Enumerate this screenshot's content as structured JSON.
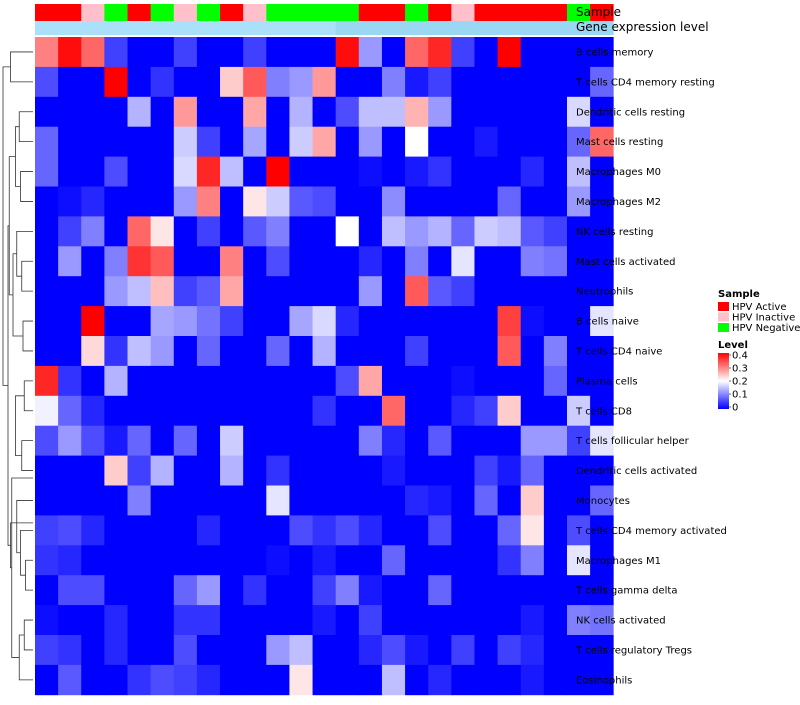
{
  "chart_data": {
    "type": "heatmap",
    "title": "",
    "annotation_labels": {
      "sample": "Sample",
      "gene": "Gene expression level"
    },
    "rows": [
      "B cells memory",
      "T cells CD4 memory resting",
      "Dendritic cells resting",
      "Mast cells resting",
      "Macrophages M0",
      "Macrophages M2",
      "NK cells resting",
      "Mast cells activated",
      "Neutrophils",
      "B cells naive",
      "T cells CD4 naive",
      "Plasma cells",
      "T cells CD8",
      "T cells follicular helper",
      "Dendritic cells activated",
      "Monocytes",
      "T cells CD4 memory activated",
      "Macrophages M1",
      "T cells gamma delta",
      "NK cells activated",
      "T cells regulatory  Tregs",
      "Eosinophils"
    ],
    "sample_groups": [
      "HPV Active",
      "HPV Active",
      "HPV Inactive",
      "HPV Negative",
      "HPV Active",
      "HPV Negative",
      "HPV Inactive",
      "HPV Negative",
      "HPV Active",
      "HPV Inactive",
      "HPV Negative",
      "HPV Negative",
      "HPV Negative",
      "HPV Negative",
      "HPV Active",
      "HPV Active",
      "HPV Negative",
      "HPV Active",
      "HPV Inactive",
      "HPV Active",
      "HPV Active",
      "HPV Active",
      "HPV Active",
      "HPV Negative",
      "HPV Active"
    ],
    "gene_expression_level": [
      0.2,
      0.2,
      0.2,
      0.2,
      0.2,
      0.2,
      0.2,
      0.2,
      0.2,
      0.2,
      0.2,
      0.2,
      0.2,
      0.6,
      0.6,
      0.6,
      0.6,
      0.6,
      0.6,
      0.6,
      0.6,
      0.6,
      0.6,
      0.6,
      0.6
    ],
    "values": [
      [
        0.3,
        0.39,
        0.32,
        0.05,
        0.0,
        0.0,
        0.05,
        0.0,
        0.0,
        0.05,
        0.0,
        0.0,
        0.0,
        0.39,
        0.12,
        0.0,
        0.32,
        0.37,
        0.05,
        0.0,
        0.4,
        0.0,
        0.0,
        0.0,
        0.0
      ],
      [
        0.06,
        0.0,
        0.0,
        0.4,
        0.0,
        0.04,
        0.0,
        0.0,
        0.24,
        0.33,
        0.1,
        0.12,
        0.28,
        0.0,
        0.0,
        0.1,
        0.02,
        0.05,
        0.0,
        0.0,
        0.0,
        0.0,
        0.0,
        0.0,
        0.08
      ],
      [
        0.0,
        0.0,
        0.0,
        0.0,
        0.14,
        0.0,
        0.28,
        0.0,
        0.0,
        0.27,
        0.0,
        0.14,
        0.0,
        0.06,
        0.15,
        0.15,
        0.26,
        0.12,
        0.0,
        0.0,
        0.0,
        0.0,
        0.0,
        0.17,
        0.0
      ],
      [
        0.08,
        0.0,
        0.0,
        0.0,
        0.0,
        0.0,
        0.16,
        0.05,
        0.0,
        0.13,
        0.0,
        0.16,
        0.27,
        0.0,
        0.12,
        0.0,
        0.2,
        0.0,
        0.0,
        0.02,
        0.0,
        0.0,
        0.0,
        0.08,
        0.32
      ],
      [
        0.08,
        0.0,
        0.0,
        0.06,
        0.0,
        0.0,
        0.17,
        0.37,
        0.15,
        0.0,
        0.4,
        0.0,
        0.0,
        0.0,
        0.01,
        0.0,
        0.02,
        0.04,
        0.0,
        0.0,
        0.0,
        0.03,
        0.0,
        0.15,
        0.0
      ],
      [
        0.0,
        0.01,
        0.03,
        0.0,
        0.0,
        0.0,
        0.12,
        0.3,
        0.0,
        0.22,
        0.16,
        0.07,
        0.06,
        0.0,
        0.0,
        0.11,
        0.0,
        0.0,
        0.0,
        0.0,
        0.08,
        0.0,
        0.0,
        0.12,
        0.0
      ],
      [
        0.0,
        0.05,
        0.1,
        0.0,
        0.32,
        0.22,
        0.0,
        0.05,
        0.0,
        0.07,
        0.1,
        0.0,
        0.0,
        0.2,
        0.0,
        0.15,
        0.12,
        0.14,
        0.08,
        0.16,
        0.15,
        0.07,
        0.05,
        0.0,
        0.0
      ],
      [
        0.0,
        0.12,
        0.0,
        0.1,
        0.36,
        0.33,
        0.0,
        0.0,
        0.3,
        0.0,
        0.06,
        0.0,
        0.0,
        0.0,
        0.03,
        0.0,
        0.1,
        0.0,
        0.18,
        0.0,
        0.0,
        0.1,
        0.09,
        0.0,
        0.0
      ],
      [
        0.0,
        0.0,
        0.0,
        0.12,
        0.15,
        0.25,
        0.05,
        0.07,
        0.27,
        0.0,
        0.0,
        0.0,
        0.0,
        0.0,
        0.12,
        0.0,
        0.33,
        0.07,
        0.05,
        0.0,
        0.0,
        0.0,
        0.0,
        0.0,
        0.0
      ],
      [
        0.0,
        0.0,
        0.4,
        0.0,
        0.0,
        0.13,
        0.12,
        0.09,
        0.05,
        0.0,
        0.0,
        0.13,
        0.17,
        0.03,
        0.0,
        0.0,
        0.0,
        0.0,
        0.0,
        0.0,
        0.35,
        0.01,
        0.0,
        0.0,
        0.18
      ],
      [
        0.0,
        0.0,
        0.23,
        0.04,
        0.15,
        0.12,
        0.0,
        0.08,
        0.0,
        0.0,
        0.08,
        0.0,
        0.14,
        0.0,
        0.0,
        0.0,
        0.05,
        0.0,
        0.0,
        0.0,
        0.33,
        0.0,
        0.1,
        0.0,
        0.0
      ],
      [
        0.37,
        0.04,
        0.0,
        0.14,
        0.0,
        0.0,
        0.0,
        0.0,
        0.0,
        0.0,
        0.0,
        0.0,
        0.0,
        0.06,
        0.27,
        0.0,
        0.0,
        0.0,
        0.01,
        0.0,
        0.0,
        0.0,
        0.08,
        0.0,
        0.0
      ],
      [
        0.19,
        0.08,
        0.03,
        0.0,
        0.0,
        0.0,
        0.0,
        0.0,
        0.0,
        0.0,
        0.0,
        0.0,
        0.04,
        0.0,
        0.0,
        0.32,
        0.0,
        0.0,
        0.03,
        0.05,
        0.24,
        0.0,
        0.0,
        0.16,
        0.0
      ],
      [
        0.06,
        0.12,
        0.06,
        0.02,
        0.08,
        0.0,
        0.08,
        0.0,
        0.16,
        0.0,
        0.0,
        0.0,
        0.0,
        0.0,
        0.1,
        0.03,
        0.0,
        0.07,
        0.0,
        0.0,
        0.0,
        0.12,
        0.12,
        0.05,
        0.18
      ],
      [
        0.0,
        0.0,
        0.0,
        0.24,
        0.05,
        0.14,
        0.0,
        0.0,
        0.14,
        0.0,
        0.04,
        0.0,
        0.0,
        0.0,
        0.0,
        0.02,
        0.0,
        0.0,
        0.0,
        0.05,
        0.02,
        0.08,
        0.0,
        0.0,
        0.0
      ],
      [
        0.0,
        0.0,
        0.0,
        0.0,
        0.1,
        0.0,
        0.0,
        0.0,
        0.0,
        0.0,
        0.18,
        0.0,
        0.0,
        0.0,
        0.0,
        0.0,
        0.03,
        0.02,
        0.0,
        0.08,
        0.0,
        0.24,
        0.0,
        0.0,
        0.08
      ],
      [
        0.05,
        0.06,
        0.03,
        0.0,
        0.0,
        0.0,
        0.0,
        0.03,
        0.0,
        0.0,
        0.0,
        0.06,
        0.04,
        0.06,
        0.03,
        0.0,
        0.0,
        0.06,
        0.0,
        0.0,
        0.08,
        0.22,
        0.0,
        0.06,
        0.0
      ],
      [
        0.04,
        0.03,
        0.0,
        0.0,
        0.0,
        0.0,
        0.0,
        0.0,
        0.0,
        0.0,
        0.01,
        0.0,
        0.02,
        0.0,
        0.0,
        0.08,
        0.0,
        0.0,
        0.0,
        0.0,
        0.04,
        0.1,
        0.0,
        0.18,
        0.0
      ],
      [
        0.0,
        0.06,
        0.06,
        0.0,
        0.0,
        0.0,
        0.08,
        0.12,
        0.0,
        0.04,
        0.0,
        0.0,
        0.05,
        0.1,
        0.02,
        0.0,
        0.0,
        0.08,
        0.0,
        0.0,
        0.0,
        0.0,
        0.0,
        0.0,
        0.0
      ],
      [
        0.01,
        0.0,
        0.0,
        0.03,
        0.0,
        0.0,
        0.04,
        0.04,
        0.0,
        0.0,
        0.0,
        0.0,
        0.02,
        0.0,
        0.05,
        0.0,
        0.0,
        0.0,
        0.0,
        0.0,
        0.0,
        0.02,
        0.0,
        0.1,
        0.09
      ],
      [
        0.05,
        0.04,
        0.0,
        0.03,
        0.0,
        0.0,
        0.06,
        0.0,
        0.0,
        0.0,
        0.12,
        0.15,
        0.0,
        0.0,
        0.03,
        0.06,
        0.02,
        0.0,
        0.05,
        0.0,
        0.05,
        0.03,
        0.0,
        0.0,
        0.0
      ],
      [
        0.0,
        0.07,
        0.0,
        0.0,
        0.04,
        0.06,
        0.05,
        0.03,
        0.0,
        0.0,
        0.0,
        0.22,
        0.0,
        0.0,
        0.0,
        0.15,
        0.0,
        0.03,
        0.0,
        0.0,
        0.0,
        0.02,
        0.0,
        0.0,
        0.0
      ]
    ],
    "row_dendrogram": [
      [
        [
          11,
          12
        ],
        0.35
      ],
      [
        [
          9,
          10
        ],
        0.4
      ],
      [
        [
          7,
          8
        ],
        0.45
      ],
      [
        [
          13,
          14
        ],
        0.45
      ],
      [
        [
          17,
          18
        ],
        0.3
      ],
      [
        [
          16,
          17.5
        ],
        0.5
      ],
      [
        [
          19,
          20
        ],
        0.35
      ],
      [
        [
          19.5,
          21
        ],
        0.55
      ],
      [
        [
          0,
          1
        ],
        0.9
      ],
      [
        [
          2,
          3
        ],
        0.55
      ],
      [
        [
          4,
          5
        ],
        0.5
      ],
      [
        [
          2.5,
          4.5
        ],
        0.7
      ],
      [
        [
          6,
          7.5
        ],
        0.65
      ],
      [
        [
          6.75,
          9.5
        ],
        0.8
      ],
      [
        [
          11.5,
          13.5
        ],
        0.7
      ],
      [
        [
          15,
          16.75
        ],
        0.65
      ],
      [
        [
          14.25,
          20.25
        ],
        0.85
      ],
      [
        [
          15.75,
          17.25
        ],
        0.9
      ],
      [
        [
          3.5,
          8.125
        ],
        0.95
      ],
      [
        [
          5.8125,
          16.5
        ],
        1.0
      ],
      [
        [
          0.5,
          11.15625
        ],
        1.2
      ]
    ],
    "legend": {
      "sample_title": "Sample",
      "sample_items": [
        "HPV Active",
        "HPV Inactive",
        "HPV Negative"
      ],
      "sample_colors": [
        "#ff0000",
        "#ffc0cb",
        "#00ff00"
      ],
      "level_title": "Level",
      "level_ticks": [
        "0.4",
        "0.3",
        "0.2",
        "0.1",
        "0"
      ],
      "level_values": [
        0.4,
        0.3,
        0.2,
        0.1,
        0
      ]
    },
    "color_scale": {
      "min": 0,
      "max": 0.4,
      "low": "#0000ff",
      "mid": "#ffffff",
      "high": "#ff0000"
    },
    "gene_colors": {
      "low": "#b3e5fc",
      "high": "#87ceeb"
    }
  }
}
